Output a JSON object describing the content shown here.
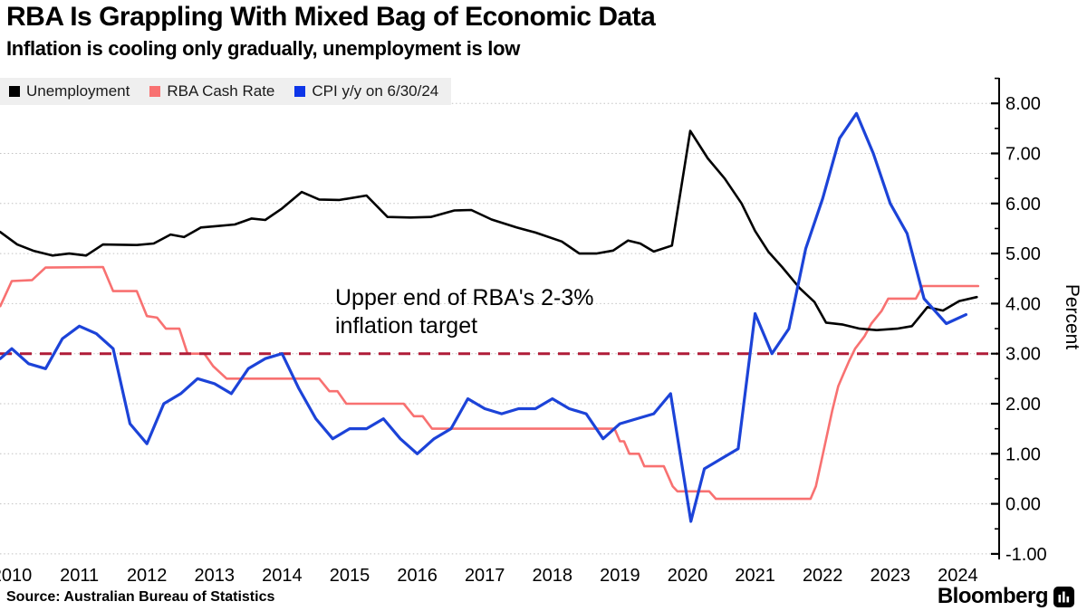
{
  "header": {
    "title": "RBA Is Grappling With Mixed Bag of Economic Data",
    "subtitle": "Inflation is cooling only gradually, unemployment is low"
  },
  "legend": {
    "items": [
      {
        "label": "Unemployment",
        "color": "#000000"
      },
      {
        "label": "RBA Cash Rate",
        "color": "#f87171"
      },
      {
        "label": "CPI y/y on 6/30/24",
        "color": "#0d35e8"
      }
    ]
  },
  "annotation": {
    "line1": "Upper end of RBA's 2-3%",
    "line2": "inflation target"
  },
  "footer": {
    "source": "Source: Australian Bureau of Statistics",
    "brand": "Bloomberg"
  },
  "colors": {
    "grid": "#c2c2c2",
    "axis": "#000000",
    "target_dash": "#b01c38",
    "legend_bg": "#efefef"
  },
  "chart_data": {
    "type": "line",
    "title": "RBA Is Grappling With Mixed Bag of Economic Data",
    "xlabel": "",
    "ylabel": "Percent",
    "ylim": [
      -1,
      8
    ],
    "grid": "horizontal-dotted",
    "legend_position": "top-left",
    "y_axis": {
      "side": "right",
      "title": "Percent",
      "ticks": [
        {
          "value": 8,
          "label": "8.00"
        },
        {
          "value": 7,
          "label": "7.00"
        },
        {
          "value": 6,
          "label": "6.00"
        },
        {
          "value": 5,
          "label": "5.00"
        },
        {
          "value": 4,
          "label": "4.00"
        },
        {
          "value": 3,
          "label": "3.00"
        },
        {
          "value": 2,
          "label": "2.00"
        },
        {
          "value": 1,
          "label": "1.00"
        },
        {
          "value": 0,
          "label": "0.00"
        },
        {
          "value": -1,
          "label": "-1.00"
        }
      ],
      "minor_tick_step": 0.5
    },
    "x_axis": {
      "ticks": [
        "2010",
        "2011",
        "2012",
        "2013",
        "2014",
        "2015",
        "2016",
        "2017",
        "2018",
        "2019",
        "2020",
        "2021",
        "2022",
        "2023",
        "2024"
      ]
    },
    "target_line": {
      "value": 3.0,
      "style": "dashed",
      "color": "#b01c38"
    },
    "series": [
      {
        "name": "Unemployment",
        "color": "#000000",
        "width": 2.6,
        "points": [
          [
            2010.33,
            5.43
          ],
          [
            2010.58,
            5.18
          ],
          [
            2010.83,
            5.05
          ],
          [
            2011.1,
            4.96
          ],
          [
            2011.35,
            5.0
          ],
          [
            2011.6,
            4.96
          ],
          [
            2011.85,
            5.18
          ],
          [
            2012.35,
            5.17
          ],
          [
            2012.6,
            5.2
          ],
          [
            2012.85,
            5.38
          ],
          [
            2013.05,
            5.33
          ],
          [
            2013.3,
            5.52
          ],
          [
            2013.55,
            5.55
          ],
          [
            2013.8,
            5.58
          ],
          [
            2014.05,
            5.7
          ],
          [
            2014.25,
            5.67
          ],
          [
            2014.5,
            5.9
          ],
          [
            2014.79,
            6.23
          ],
          [
            2015.05,
            6.08
          ],
          [
            2015.35,
            6.07
          ],
          [
            2015.75,
            6.16
          ],
          [
            2016.06,
            5.73
          ],
          [
            2016.4,
            5.72
          ],
          [
            2016.7,
            5.73
          ],
          [
            2017.05,
            5.86
          ],
          [
            2017.3,
            5.87
          ],
          [
            2017.6,
            5.68
          ],
          [
            2017.97,
            5.52
          ],
          [
            2018.25,
            5.42
          ],
          [
            2018.64,
            5.24
          ],
          [
            2018.9,
            5.0
          ],
          [
            2019.15,
            5.0
          ],
          [
            2019.4,
            5.06
          ],
          [
            2019.62,
            5.26
          ],
          [
            2019.8,
            5.2
          ],
          [
            2020.0,
            5.04
          ],
          [
            2020.27,
            5.16
          ],
          [
            2020.54,
            7.45
          ],
          [
            2020.8,
            6.9
          ],
          [
            2021.05,
            6.5
          ],
          [
            2021.3,
            6.0
          ],
          [
            2021.5,
            5.45
          ],
          [
            2021.7,
            5.03
          ],
          [
            2021.9,
            4.73
          ],
          [
            2022.16,
            4.31
          ],
          [
            2022.38,
            4.03
          ],
          [
            2022.55,
            3.62
          ],
          [
            2022.8,
            3.58
          ],
          [
            2023.05,
            3.5
          ],
          [
            2023.3,
            3.47
          ],
          [
            2023.6,
            3.5
          ],
          [
            2023.82,
            3.55
          ],
          [
            2024.05,
            3.93
          ],
          [
            2024.28,
            3.86
          ],
          [
            2024.52,
            4.05
          ],
          [
            2024.78,
            4.13
          ]
        ]
      },
      {
        "name": "RBA Cash Rate",
        "color": "#f87171",
        "width": 2.6,
        "points": [
          [
            2010.33,
            3.95
          ],
          [
            2010.5,
            4.45
          ],
          [
            2010.8,
            4.47
          ],
          [
            2011.0,
            4.72
          ],
          [
            2011.85,
            4.73
          ],
          [
            2012.0,
            4.25
          ],
          [
            2012.35,
            4.25
          ],
          [
            2012.5,
            3.75
          ],
          [
            2012.65,
            3.72
          ],
          [
            2012.78,
            3.5
          ],
          [
            2012.98,
            3.5
          ],
          [
            2013.1,
            3.0
          ],
          [
            2013.35,
            3.0
          ],
          [
            2013.48,
            2.75
          ],
          [
            2013.68,
            2.5
          ],
          [
            2015.05,
            2.5
          ],
          [
            2015.2,
            2.25
          ],
          [
            2015.32,
            2.25
          ],
          [
            2015.45,
            2.0
          ],
          [
            2016.3,
            2.0
          ],
          [
            2016.45,
            1.75
          ],
          [
            2016.58,
            1.75
          ],
          [
            2016.72,
            1.5
          ],
          [
            2019.42,
            1.5
          ],
          [
            2019.5,
            1.25
          ],
          [
            2019.56,
            1.25
          ],
          [
            2019.64,
            1.0
          ],
          [
            2019.78,
            1.0
          ],
          [
            2019.86,
            0.75
          ],
          [
            2020.15,
            0.75
          ],
          [
            2020.28,
            0.35
          ],
          [
            2020.35,
            0.25
          ],
          [
            2020.82,
            0.25
          ],
          [
            2020.92,
            0.1
          ],
          [
            2022.32,
            0.1
          ],
          [
            2022.4,
            0.35
          ],
          [
            2022.48,
            0.85
          ],
          [
            2022.56,
            1.35
          ],
          [
            2022.64,
            1.85
          ],
          [
            2022.73,
            2.35
          ],
          [
            2022.81,
            2.6
          ],
          [
            2022.89,
            2.85
          ],
          [
            2022.98,
            3.1
          ],
          [
            2023.12,
            3.35
          ],
          [
            2023.22,
            3.6
          ],
          [
            2023.37,
            3.85
          ],
          [
            2023.47,
            4.1
          ],
          [
            2023.88,
            4.1
          ],
          [
            2023.98,
            4.35
          ],
          [
            2024.8,
            4.35
          ]
        ]
      },
      {
        "name": "CPI y/y on 6/30/24",
        "color": "#1c43d8",
        "width": 3.2,
        "points": [
          [
            2010.33,
            2.9
          ],
          [
            2010.5,
            3.1
          ],
          [
            2010.75,
            2.8
          ],
          [
            2011.0,
            2.7
          ],
          [
            2011.25,
            3.3
          ],
          [
            2011.5,
            3.55
          ],
          [
            2011.75,
            3.4
          ],
          [
            2012.0,
            3.1
          ],
          [
            2012.25,
            1.6
          ],
          [
            2012.5,
            1.2
          ],
          [
            2012.75,
            2.0
          ],
          [
            2013.0,
            2.2
          ],
          [
            2013.25,
            2.5
          ],
          [
            2013.5,
            2.4
          ],
          [
            2013.75,
            2.2
          ],
          [
            2014.0,
            2.7
          ],
          [
            2014.25,
            2.9
          ],
          [
            2014.5,
            3.0
          ],
          [
            2014.75,
            2.3
          ],
          [
            2015.0,
            1.7
          ],
          [
            2015.25,
            1.3
          ],
          [
            2015.5,
            1.5
          ],
          [
            2015.75,
            1.5
          ],
          [
            2016.0,
            1.7
          ],
          [
            2016.25,
            1.3
          ],
          [
            2016.5,
            1.0
          ],
          [
            2016.75,
            1.3
          ],
          [
            2017.0,
            1.5
          ],
          [
            2017.25,
            2.1
          ],
          [
            2017.5,
            1.9
          ],
          [
            2017.75,
            1.8
          ],
          [
            2018.0,
            1.9
          ],
          [
            2018.25,
            1.9
          ],
          [
            2018.5,
            2.1
          ],
          [
            2018.75,
            1.9
          ],
          [
            2019.0,
            1.8
          ],
          [
            2019.25,
            1.3
          ],
          [
            2019.5,
            1.6
          ],
          [
            2019.75,
            1.7
          ],
          [
            2020.0,
            1.8
          ],
          [
            2020.25,
            2.2
          ],
          [
            2020.55,
            -0.35
          ],
          [
            2020.75,
            0.7
          ],
          [
            2021.0,
            0.9
          ],
          [
            2021.25,
            1.1
          ],
          [
            2021.5,
            3.8
          ],
          [
            2021.75,
            3.0
          ],
          [
            2022.0,
            3.5
          ],
          [
            2022.25,
            5.1
          ],
          [
            2022.5,
            6.1
          ],
          [
            2022.75,
            7.3
          ],
          [
            2023.0,
            7.8
          ],
          [
            2023.25,
            7.0
          ],
          [
            2023.5,
            6.0
          ],
          [
            2023.75,
            5.4
          ],
          [
            2024.0,
            4.1
          ],
          [
            2024.33,
            3.6
          ],
          [
            2024.62,
            3.78
          ]
        ]
      }
    ]
  }
}
